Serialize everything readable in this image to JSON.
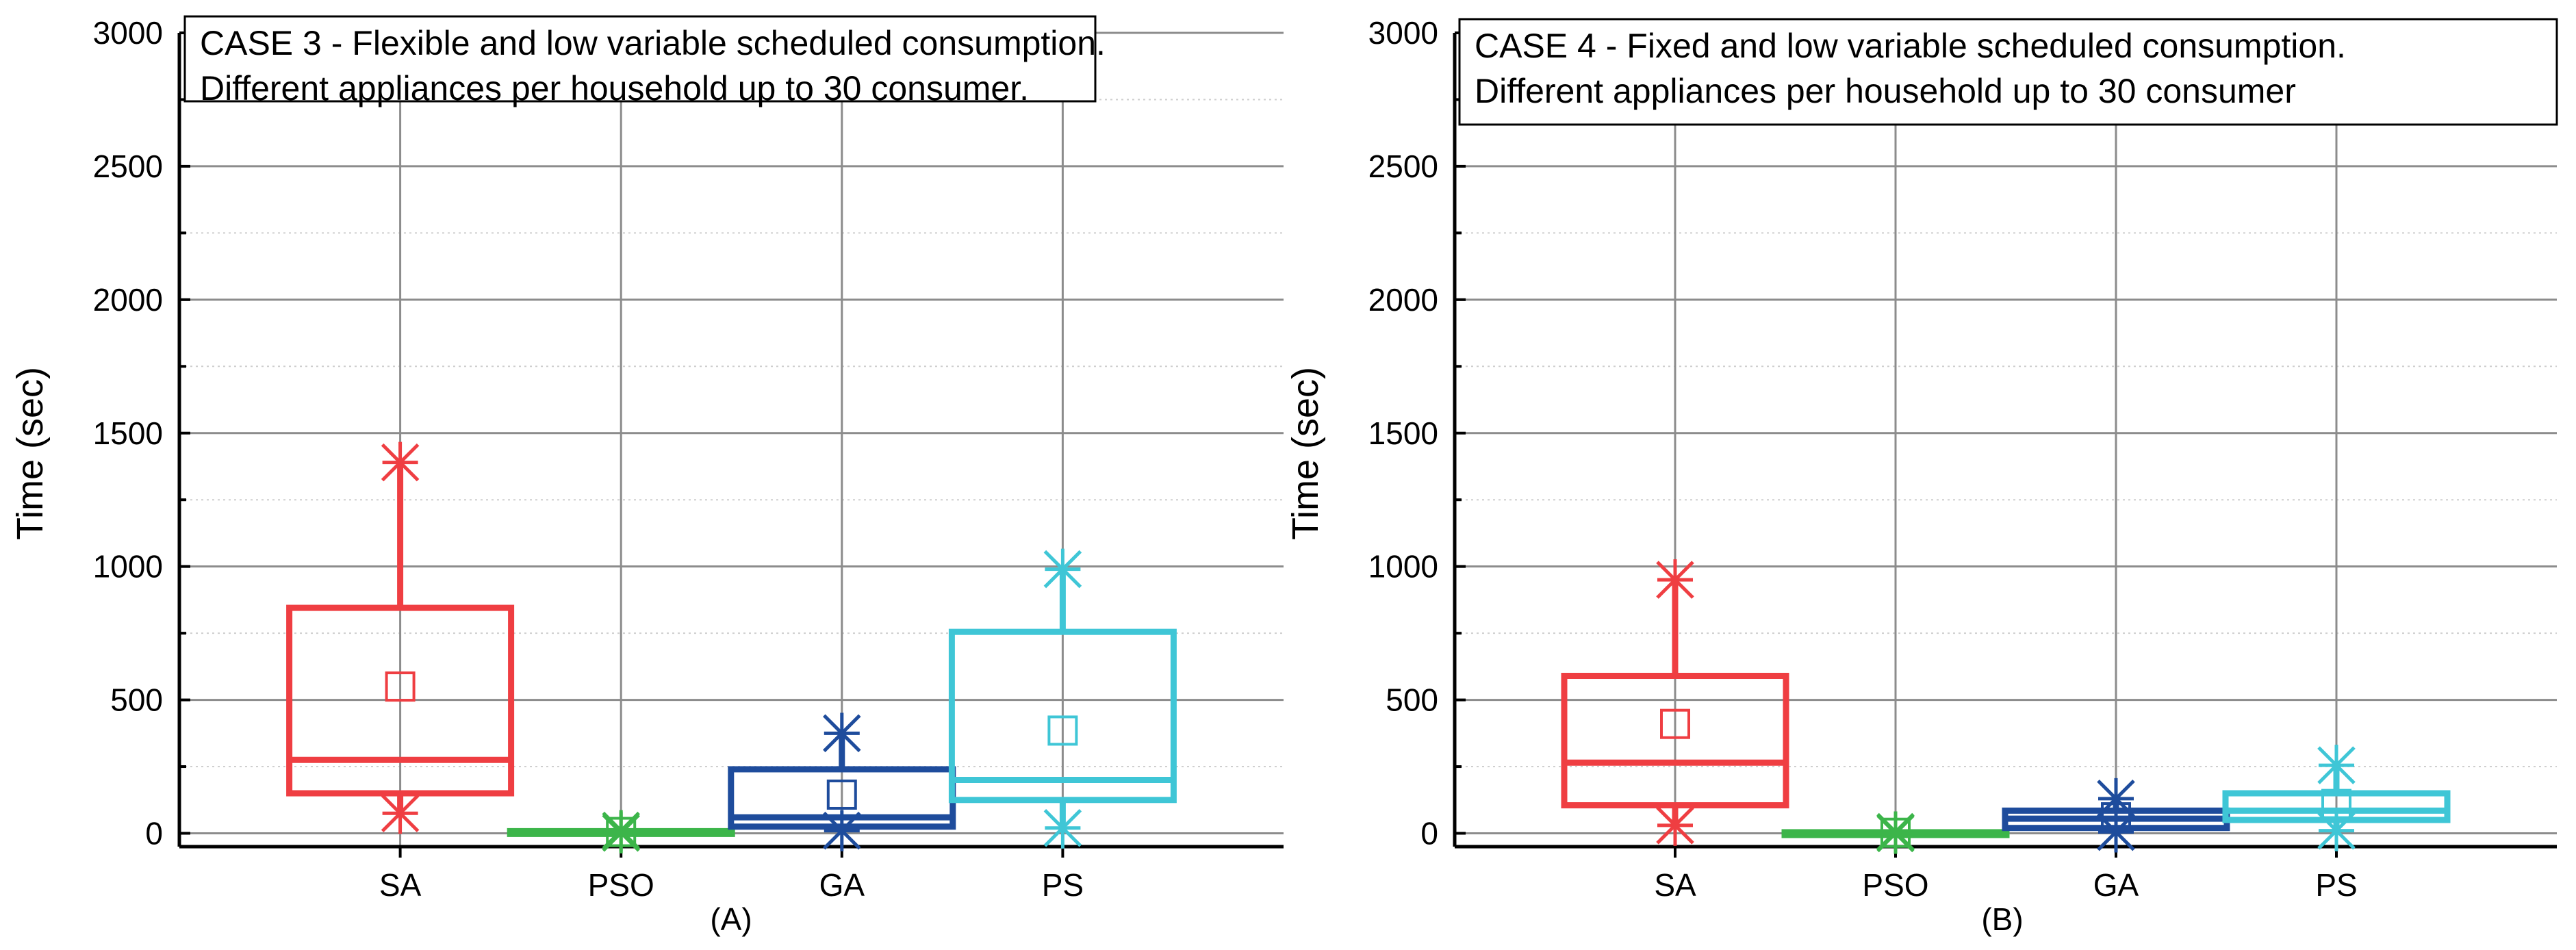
{
  "chart_data": [
    {
      "type": "box",
      "panel_label": "(A)",
      "title_lines": [
        "CASE 3 - Flexible and low variable scheduled consumption.",
        "Different appliances per household up to 30 consumer."
      ],
      "xlabel": "",
      "ylabel": "Time (sec)",
      "ylim": [
        -50,
        3000
      ],
      "yticks": [
        0,
        500,
        1000,
        1500,
        2000,
        2500,
        3000
      ],
      "categories": [
        "SA",
        "PSO",
        "GA",
        "PS"
      ],
      "series": [
        {
          "name": "SA",
          "color": "#ef3e42",
          "q1": 150,
          "median": 275,
          "q3": 845,
          "mean": 550,
          "min": 75,
          "max": 1390
        },
        {
          "name": "PSO",
          "color": "#3cb54a",
          "q1": 2,
          "median": 5,
          "q3": 8,
          "mean": 5,
          "min": 2,
          "max": 10
        },
        {
          "name": "GA",
          "color": "#1e4c9c",
          "q1": 25,
          "median": 60,
          "q3": 240,
          "mean": 145,
          "min": 10,
          "max": 375
        },
        {
          "name": "PS",
          "color": "#3fc6d6",
          "q1": 125,
          "median": 200,
          "q3": 755,
          "mean": 385,
          "min": 20,
          "max": 990
        }
      ]
    },
    {
      "type": "box",
      "panel_label": "(B)",
      "title_lines": [
        "CASE 4 - Fixed and low variable scheduled consumption.",
        "Different appliances per household up to 30 consumer"
      ],
      "xlabel": "",
      "ylabel": "Time (sec)",
      "ylim": [
        -50,
        3000
      ],
      "yticks": [
        0,
        500,
        1000,
        1500,
        2000,
        2500,
        3000
      ],
      "categories": [
        "SA",
        "PSO",
        "GA",
        "PS"
      ],
      "series": [
        {
          "name": "SA",
          "color": "#ef3e42",
          "q1": 105,
          "median": 265,
          "q3": 590,
          "mean": 410,
          "min": 30,
          "max": 950
        },
        {
          "name": "PSO",
          "color": "#3cb54a",
          "q1": 0,
          "median": 2,
          "q3": 4,
          "mean": 2,
          "min": 0,
          "max": 5
        },
        {
          "name": "GA",
          "color": "#1e4c9c",
          "q1": 20,
          "median": 55,
          "q3": 85,
          "mean": 60,
          "min": 5,
          "max": 130
        },
        {
          "name": "PS",
          "color": "#3fc6d6",
          "q1": 50,
          "median": 85,
          "q3": 150,
          "mean": 110,
          "min": 10,
          "max": 255
        }
      ]
    }
  ]
}
